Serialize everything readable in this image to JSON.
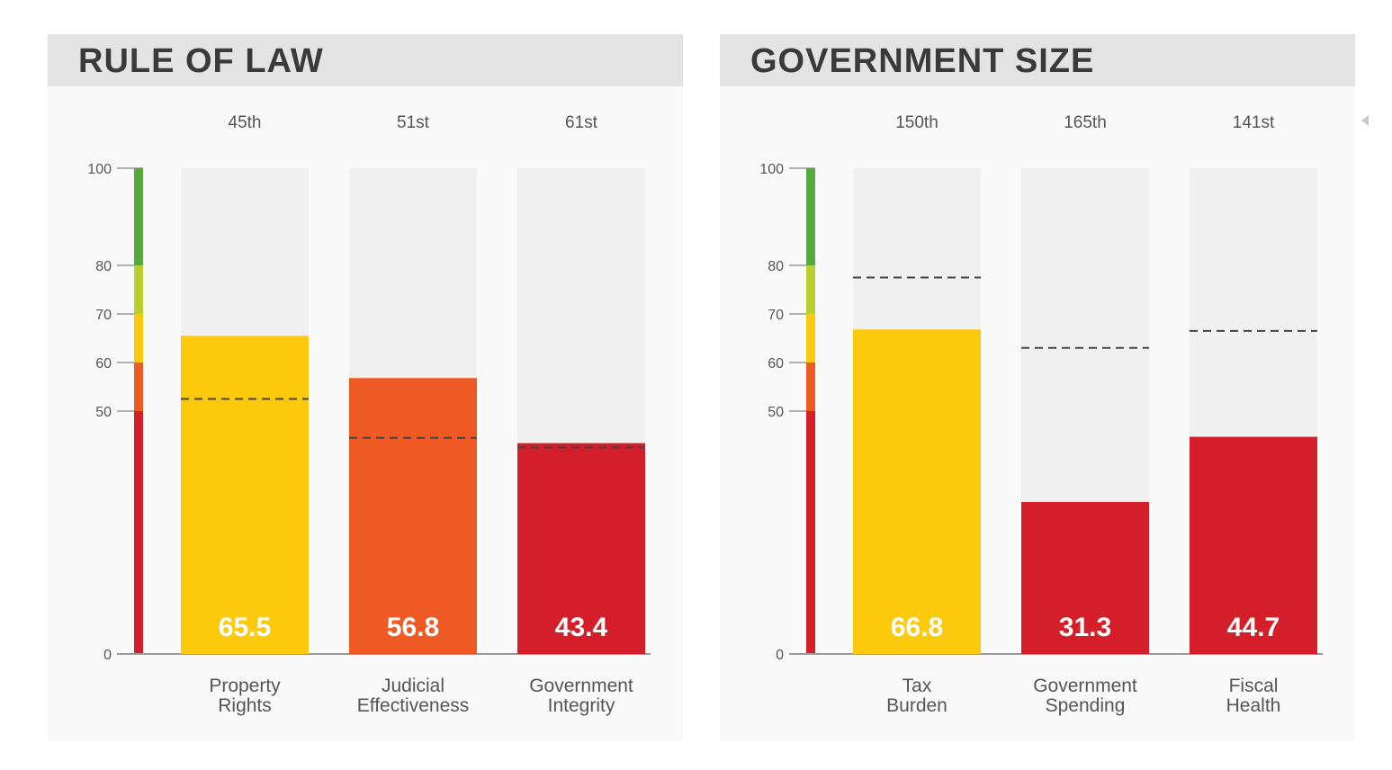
{
  "chart_data": [
    {
      "type": "bar",
      "title": "RULE OF LAW",
      "categories": [
        "Property Rights",
        "Judicial Effectiveness",
        "Government Integrity"
      ],
      "category_lines": [
        [
          "Property",
          "Rights"
        ],
        [
          "Judicial",
          "Effectiveness"
        ],
        [
          "Government",
          "Integrity"
        ]
      ],
      "values": [
        65.5,
        56.8,
        43.4
      ],
      "value_labels": [
        "65.5",
        "56.8",
        "43.4"
      ],
      "ranks": [
        "45th",
        "51st",
        "61st"
      ],
      "benchmark": [
        52.5,
        44.5,
        42.5
      ],
      "bar_colors": [
        "#fdc90d",
        "#ef5a24",
        "#d41e2a"
      ],
      "yticks": [
        0,
        50,
        60,
        70,
        80,
        100
      ],
      "ylim": [
        0,
        100
      ],
      "scale_bands": [
        {
          "from": 0,
          "to": 50,
          "color": "#d41e2a"
        },
        {
          "from": 50,
          "to": 60,
          "color": "#ef5a24"
        },
        {
          "from": 60,
          "to": 70,
          "color": "#fdc90d"
        },
        {
          "from": 70,
          "to": 80,
          "color": "#b9cf2e"
        },
        {
          "from": 80,
          "to": 100,
          "color": "#55aa3a"
        }
      ]
    },
    {
      "type": "bar",
      "title": "GOVERNMENT SIZE",
      "categories": [
        "Tax Burden",
        "Government Spending",
        "Fiscal Health"
      ],
      "category_lines": [
        [
          "Tax",
          "Burden"
        ],
        [
          "Government",
          "Spending"
        ],
        [
          "Fiscal",
          "Health"
        ]
      ],
      "values": [
        66.8,
        31.3,
        44.7
      ],
      "value_labels": [
        "66.8",
        "31.3",
        "44.7"
      ],
      "ranks": [
        "150th",
        "165th",
        "141st"
      ],
      "benchmark": [
        77.5,
        63,
        66.5
      ],
      "bar_colors": [
        "#fdc90d",
        "#d41e2a",
        "#d41e2a"
      ],
      "yticks": [
        0,
        50,
        60,
        70,
        80,
        100
      ],
      "ylim": [
        0,
        100
      ],
      "scale_bands": [
        {
          "from": 0,
          "to": 50,
          "color": "#d41e2a"
        },
        {
          "from": 50,
          "to": 60,
          "color": "#ef5a24"
        },
        {
          "from": 60,
          "to": 70,
          "color": "#fdc90d"
        },
        {
          "from": 70,
          "to": 80,
          "color": "#b9cf2e"
        },
        {
          "from": 80,
          "to": 100,
          "color": "#55aa3a"
        }
      ]
    }
  ]
}
